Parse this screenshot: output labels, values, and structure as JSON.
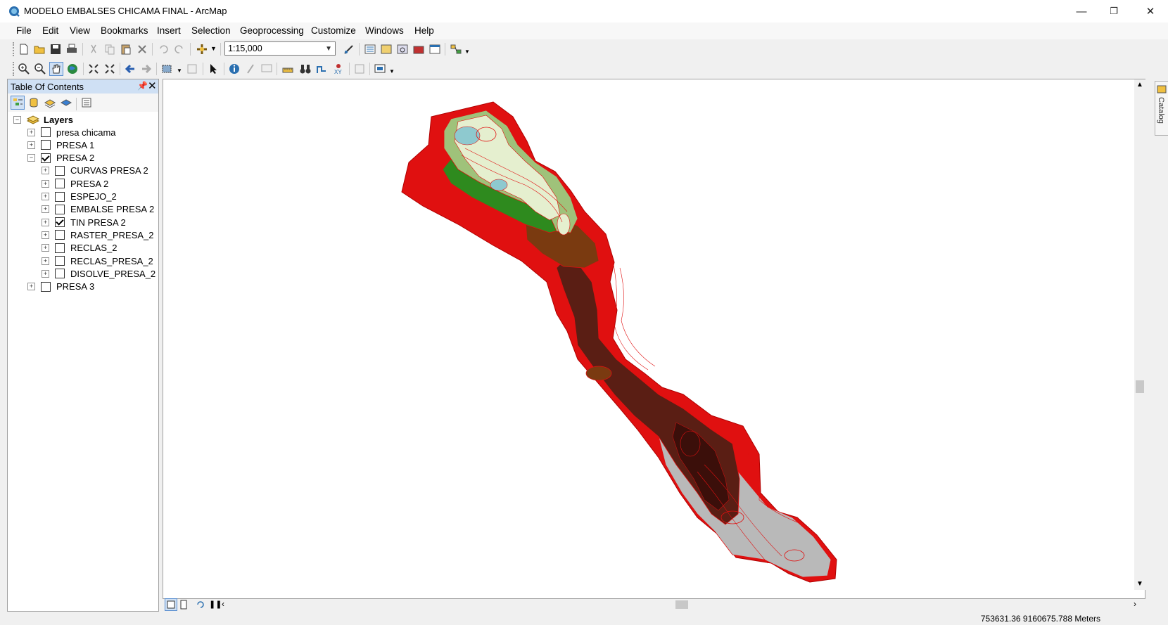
{
  "window": {
    "title": "MODELO EMBALSES CHICAMA FINAL - ArcMap",
    "minimize": "—",
    "restore": "❐",
    "close": "✕"
  },
  "menu": [
    "File",
    "Edit",
    "View",
    "Bookmarks",
    "Insert",
    "Selection",
    "Geoprocessing",
    "Customize",
    "Windows",
    "Help"
  ],
  "toolbar": {
    "scale": "1:15,000"
  },
  "toc": {
    "title": "Table Of Contents",
    "pin": "ᵖ",
    "close": "✕",
    "root": "Layers",
    "layers": [
      {
        "label": "presa chicama",
        "checked": false,
        "indent": 0,
        "expander": "+"
      },
      {
        "label": "PRESA 1",
        "checked": false,
        "indent": 0,
        "expander": "+"
      },
      {
        "label": "PRESA 2",
        "checked": true,
        "indent": 0,
        "expander": "−"
      },
      {
        "label": "CURVAS PRESA 2",
        "checked": false,
        "indent": 1,
        "expander": "+"
      },
      {
        "label": "PRESA 2",
        "checked": false,
        "indent": 1,
        "expander": "+"
      },
      {
        "label": "ESPEJO_2",
        "checked": false,
        "indent": 1,
        "expander": "+"
      },
      {
        "label": "EMBALSE PRESA 2",
        "checked": false,
        "indent": 1,
        "expander": "+"
      },
      {
        "label": "TIN PRESA 2",
        "checked": true,
        "indent": 1,
        "expander": "+"
      },
      {
        "label": "RASTER_PRESA_2",
        "checked": false,
        "indent": 1,
        "expander": "+"
      },
      {
        "label": "RECLAS_2",
        "checked": false,
        "indent": 1,
        "expander": "+"
      },
      {
        "label": "RECLAS_PRESA_2",
        "checked": false,
        "indent": 1,
        "expander": "+"
      },
      {
        "label": "DISOLVE_PRESA_2",
        "checked": false,
        "indent": 1,
        "expander": "+"
      },
      {
        "label": "PRESA 3",
        "checked": false,
        "indent": 0,
        "expander": "+"
      }
    ]
  },
  "catalog": {
    "label": "Catalog"
  },
  "status": {
    "coordinates": "753631.36  9160675.788 Meters"
  },
  "colors": {
    "contour": "#e01010",
    "terrain_low": "#5a1e14",
    "terrain_mid": "#2e8a1e",
    "terrain_high": "#d7ecc0",
    "water": "#8ec9cf",
    "toc_header": "#cfe0f4"
  }
}
